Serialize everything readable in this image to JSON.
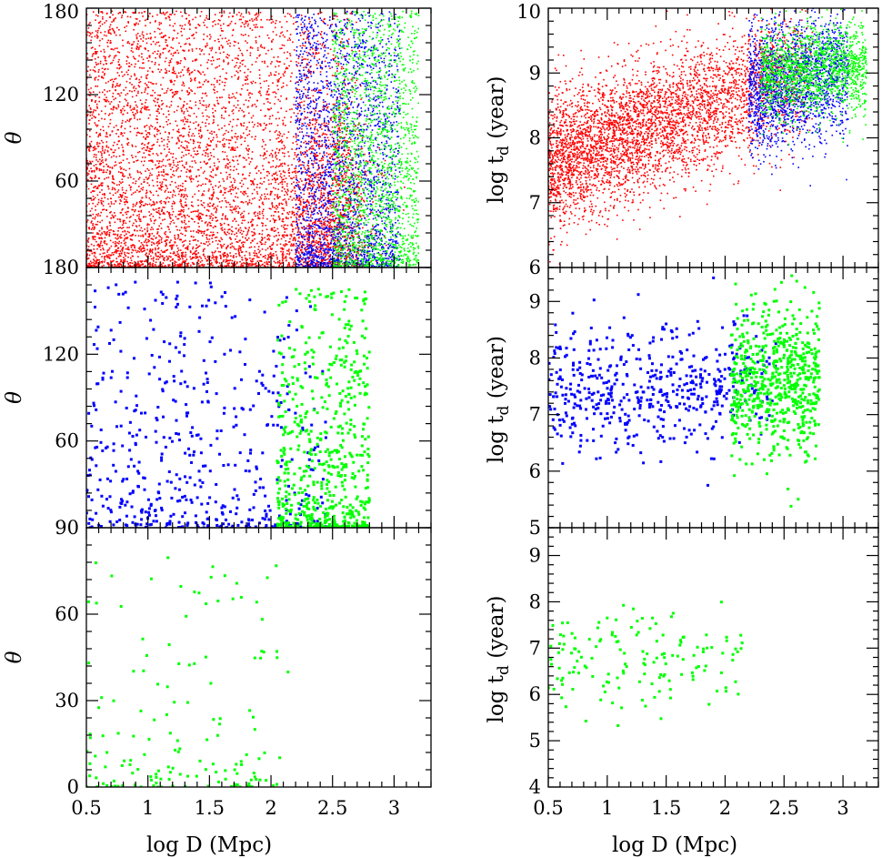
{
  "figure": {
    "xlabel": "log D (Mpc)",
    "colors": {
      "red": "#ff0000",
      "blue": "#0000ff",
      "green": "#00ff00"
    }
  },
  "chart_data": [
    {
      "type": "scatter",
      "column": "left",
      "row": 0,
      "xlim": [
        0.5,
        3.3
      ],
      "ylim": [
        0,
        180
      ],
      "xticks": [
        0.5,
        1,
        1.5,
        2,
        2.5,
        3
      ],
      "yticks": [
        60,
        120,
        180
      ],
      "ytick_labels": [
        "60",
        "120",
        "180"
      ],
      "ylabel": "θ",
      "ylabel_sub": "",
      "series": [
        {
          "name": "red",
          "color": "#ff0000",
          "n": 5200,
          "marker": 1.6,
          "seed": 11,
          "x_range": [
            0.5,
            2.75
          ],
          "x_pow": 0.75,
          "y_range": [
            0,
            178
          ],
          "y_pow": 1.6,
          "clusters": [
            {
              "x": 2.45,
              "y": 40,
              "sx": 0.2,
              "sy": 35,
              "n": 900
            }
          ]
        },
        {
          "name": "blue",
          "color": "#0000ff",
          "n": 2200,
          "marker": 1.6,
          "seed": 12,
          "x_range": [
            2.2,
            3.05
          ],
          "x_pow": 0.9,
          "y_range": [
            0,
            178
          ],
          "y_pow": 1.5
        },
        {
          "name": "green",
          "color": "#00ff00",
          "n": 1800,
          "marker": 1.6,
          "seed": 13,
          "x_range": [
            2.5,
            3.2
          ],
          "x_pow": 1.0,
          "y_range": [
            0,
            178
          ],
          "y_pow": 1.4
        }
      ]
    },
    {
      "type": "scatter",
      "column": "left",
      "row": 1,
      "xlim": [
        0.5,
        3.3
      ],
      "ylim": [
        0,
        180
      ],
      "xticks": [
        0.5,
        1,
        1.5,
        2,
        2.5,
        3
      ],
      "yticks": [
        60,
        120,
        180
      ],
      "ytick_labels": [
        "60",
        "120",
        "180"
      ],
      "ylabel": "θ",
      "ylabel_sub": "",
      "series": [
        {
          "name": "blue",
          "color": "#0000ff",
          "n": 520,
          "marker": 3,
          "seed": 21,
          "x_range": [
            0.5,
            2.45
          ],
          "x_pow": 0.8,
          "y_range": [
            0,
            170
          ],
          "y_pow": 2.0
        },
        {
          "name": "green",
          "color": "#00ff00",
          "n": 650,
          "marker": 3,
          "seed": 22,
          "x_range": [
            2.05,
            2.8
          ],
          "x_pow": 1.0,
          "y_range": [
            0,
            165
          ],
          "y_pow": 2.2
        }
      ]
    },
    {
      "type": "scatter",
      "column": "left",
      "row": 2,
      "xlim": [
        0.5,
        3.3
      ],
      "ylim": [
        0,
        90
      ],
      "xticks": [
        0.5,
        1,
        1.5,
        2,
        2.5,
        3
      ],
      "xtick_labels": [
        "0.5",
        "1",
        "1.5",
        "2",
        "2.5",
        "3"
      ],
      "yticks": [
        0,
        30,
        60,
        90
      ],
      "ytick_labels": [
        "0",
        "30",
        "60",
        "90"
      ],
      "ylabel": "θ",
      "ylabel_sub": "",
      "series": [
        {
          "name": "green",
          "color": "#00ff00",
          "n": 150,
          "marker": 3,
          "seed": 31,
          "x_range": [
            0.5,
            2.15
          ],
          "x_pow": 0.9,
          "y_range": [
            0,
            80
          ],
          "y_pow": 2.6
        }
      ]
    },
    {
      "type": "scatter",
      "column": "right",
      "row": 0,
      "xlim": [
        0.5,
        3.3
      ],
      "ylim": [
        6,
        10
      ],
      "xticks": [
        0.5,
        1,
        1.5,
        2,
        2.5,
        3
      ],
      "yticks": [
        6,
        7,
        8,
        9,
        10
      ],
      "ytick_labels": [
        "6",
        "7",
        "8",
        "9",
        "10"
      ],
      "ylabel": "log t",
      "ylabel_sub": "d",
      "ylabel_unit": "(year)",
      "series": [
        {
          "name": "red",
          "color": "#ff0000",
          "n": 4200,
          "marker": 1.6,
          "seed": 41,
          "trend": {
            "x_range": [
              0.5,
              2.75
            ],
            "x_pow": 0.7,
            "y0": 7.6,
            "slope": 0.65,
            "sd": 0.5
          }
        },
        {
          "name": "blue",
          "color": "#0000ff",
          "n": 1800,
          "marker": 1.6,
          "seed": 42,
          "trend": {
            "x_range": [
              2.2,
              3.05
            ],
            "x_pow": 0.9,
            "y0": 8.7,
            "slope": 0.35,
            "sd": 0.5,
            "anchor": 2.2
          }
        },
        {
          "name": "green",
          "color": "#00ff00",
          "n": 1600,
          "marker": 1.6,
          "seed": 43,
          "trend": {
            "x_range": [
              2.3,
              3.2
            ],
            "x_pow": 1.0,
            "y0": 9.0,
            "slope": 0.1,
            "sd": 0.35,
            "anchor": 2.3
          }
        }
      ]
    },
    {
      "type": "scatter",
      "column": "right",
      "row": 1,
      "xlim": [
        0.5,
        3.3
      ],
      "ylim": [
        5,
        9.6
      ],
      "xticks": [
        0.5,
        1,
        1.5,
        2,
        2.5,
        3
      ],
      "yticks": [
        5,
        6,
        7,
        8,
        9
      ],
      "ytick_labels": [
        "5",
        "6",
        "7",
        "8",
        "9"
      ],
      "ylabel": "log t",
      "ylabel_sub": "d",
      "ylabel_unit": "(year)",
      "series": [
        {
          "name": "blue",
          "color": "#0000ff",
          "n": 520,
          "marker": 3,
          "seed": 51,
          "trend": {
            "x_range": [
              0.5,
              2.45
            ],
            "x_pow": 0.8,
            "y0": 7.5,
            "slope": 0.0,
            "sd": 0.55
          }
        },
        {
          "name": "green",
          "color": "#00ff00",
          "n": 650,
          "marker": 3,
          "seed": 52,
          "trend": {
            "x_range": [
              2.05,
              2.8
            ],
            "x_pow": 1.0,
            "y0": 7.6,
            "slope": 0.0,
            "sd": 0.65,
            "anchor": 2.05
          }
        }
      ]
    },
    {
      "type": "scatter",
      "column": "right",
      "row": 2,
      "xlim": [
        0.5,
        3.3
      ],
      "ylim": [
        4,
        9.6
      ],
      "xticks": [
        0.5,
        1,
        1.5,
        2,
        2.5,
        3
      ],
      "xtick_labels": [
        "0.5",
        "1",
        "1.5",
        "2",
        "2.5",
        "3"
      ],
      "yticks": [
        4,
        5,
        6,
        7,
        8,
        9
      ],
      "ytick_labels": [
        "4",
        "5",
        "6",
        "7",
        "8",
        "9"
      ],
      "ylabel": "log t",
      "ylabel_sub": "d",
      "ylabel_unit": "(year)",
      "series": [
        {
          "name": "green",
          "color": "#00ff00",
          "n": 150,
          "marker": 3,
          "seed": 61,
          "trend": {
            "x_range": [
              0.5,
              2.15
            ],
            "x_pow": 1.0,
            "y0": 6.8,
            "slope": 0.0,
            "sd": 0.6
          }
        }
      ]
    }
  ]
}
